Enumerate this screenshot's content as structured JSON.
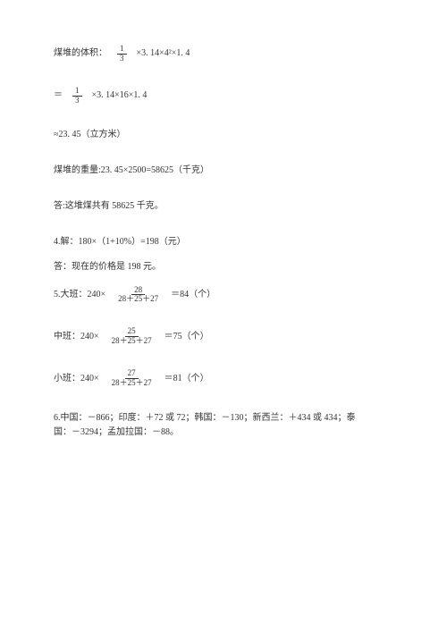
{
  "line1_pre": "煤堆的体积：",
  "frac_1_3_num": "1",
  "frac_1_3_den": "3",
  "line1_post": "×3. 14×4²×1. 4",
  "line2_pre": "＝",
  "line2_post": "×3. 14×16×1. 4",
  "line3": "≈23. 45（立方米）",
  "line4": "煤堆的重量:23. 45×2500=58625（千克）",
  "line5": "答:这堆煤共有 58625 千克。",
  "line6": "4.解：180×（1+10%）=198（元）",
  "line7": "答：现在的价格是 198 元。",
  "line8_pre": "5.大班：240×",
  "frac28_num": "28",
  "frac_sum_den": "28＋25＋27",
  "line8_post": "＝84（个）",
  "line9_pre": "中班：240×",
  "frac25_num": "25",
  "line9_post": "＝75（个）",
  "line10_pre": "小班：240×",
  "frac27_num": "27",
  "line10_post": "＝81（个）",
  "line11a": "6.中国：－866；印度：＋72 或 72；韩国：－130；新西兰：＋434 或 434；泰",
  "line11b": "国：－3294；孟加拉国：－88。"
}
